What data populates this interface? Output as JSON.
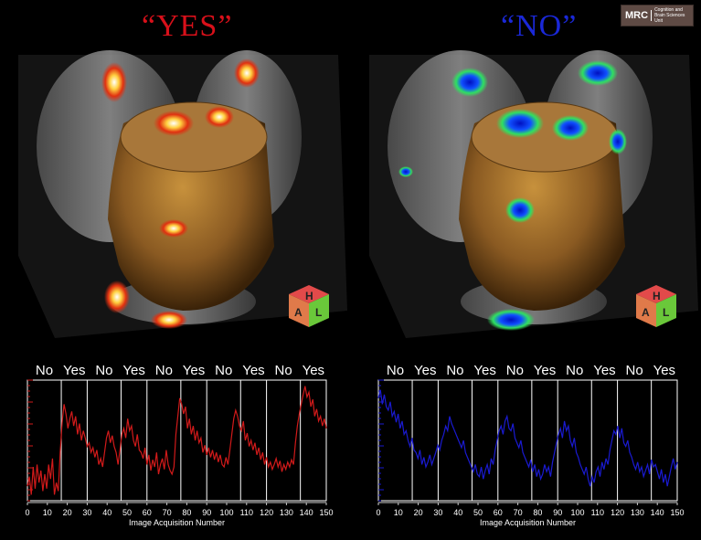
{
  "titles": {
    "left": "“YES”",
    "right": "“NO”"
  },
  "logo": {
    "abbr": "MRC",
    "text_line1": "Cognition and",
    "text_line2": "Brain Sciences Unit"
  },
  "orientation_cube": {
    "labels": [
      "H",
      "A",
      "L"
    ]
  },
  "colors": {
    "yes_title": "#d8101a",
    "no_title": "#1a28d8",
    "yes_series": "#d11a1a",
    "no_series": "#1a1ad1"
  },
  "chart_data": [
    {
      "type": "line",
      "block_labels": [
        "No",
        "Yes",
        "No",
        "Yes",
        "No",
        "Yes",
        "No",
        "Yes",
        "No",
        "Yes"
      ],
      "yes_blocks": [
        [
          17,
          30
        ],
        [
          47,
          60
        ],
        [
          77,
          90
        ],
        [
          107,
          120
        ],
        [
          137,
          150
        ]
      ],
      "xlabel": "Image Acquisition Number",
      "xticks": [
        0,
        10,
        20,
        30,
        40,
        50,
        60,
        70,
        80,
        90,
        100,
        110,
        120,
        130,
        140,
        150
      ],
      "xlim": [
        0,
        150
      ],
      "ylim": [
        0,
        1
      ],
      "series": [
        {
          "color": "#d11a1a",
          "values": [
            0.12,
            0.2,
            0.05,
            0.28,
            0.1,
            0.3,
            0.15,
            0.25,
            0.08,
            0.22,
            0.1,
            0.3,
            0.18,
            0.35,
            0.05,
            0.15,
            0.08,
            0.4,
            0.65,
            0.8,
            0.72,
            0.6,
            0.68,
            0.74,
            0.62,
            0.7,
            0.55,
            0.64,
            0.5,
            0.58,
            0.52,
            0.45,
            0.48,
            0.4,
            0.44,
            0.36,
            0.42,
            0.3,
            0.35,
            0.28,
            0.4,
            0.52,
            0.58,
            0.48,
            0.54,
            0.45,
            0.4,
            0.3,
            0.42,
            0.55,
            0.6,
            0.52,
            0.68,
            0.58,
            0.62,
            0.5,
            0.45,
            0.55,
            0.42,
            0.4,
            0.35,
            0.44,
            0.3,
            0.38,
            0.25,
            0.34,
            0.28,
            0.4,
            0.22,
            0.3,
            0.35,
            0.26,
            0.42,
            0.3,
            0.25,
            0.22,
            0.28,
            0.55,
            0.7,
            0.85,
            0.8,
            0.72,
            0.78,
            0.6,
            0.68,
            0.55,
            0.62,
            0.5,
            0.58,
            0.48,
            0.52,
            0.4,
            0.46,
            0.38,
            0.44,
            0.36,
            0.42,
            0.34,
            0.4,
            0.32,
            0.38,
            0.3,
            0.28,
            0.36,
            0.3,
            0.42,
            0.55,
            0.68,
            0.75,
            0.7,
            0.62,
            0.58,
            0.66,
            0.5,
            0.56,
            0.45,
            0.5,
            0.42,
            0.48,
            0.38,
            0.44,
            0.34,
            0.4,
            0.3,
            0.36,
            0.28,
            0.32,
            0.26,
            0.3,
            0.35,
            0.28,
            0.33,
            0.24,
            0.3,
            0.26,
            0.32,
            0.28,
            0.34,
            0.3,
            0.48,
            0.62,
            0.72,
            0.8,
            0.88,
            0.95,
            0.86,
            0.9,
            0.78,
            0.84,
            0.7,
            0.76,
            0.66,
            0.7,
            0.62,
            0.68,
            0.6
          ]
        }
      ]
    },
    {
      "type": "line",
      "block_labels": [
        "No",
        "Yes",
        "No",
        "Yes",
        "No",
        "Yes",
        "No",
        "Yes",
        "No",
        "Yes"
      ],
      "yes_blocks": [
        [
          17,
          30
        ],
        [
          47,
          60
        ],
        [
          77,
          90
        ],
        [
          107,
          120
        ],
        [
          137,
          150
        ]
      ],
      "xlabel": "Image Acquisition Number",
      "xticks": [
        0,
        10,
        20,
        30,
        40,
        50,
        60,
        70,
        80,
        90,
        100,
        110,
        120,
        130,
        140,
        150
      ],
      "xlim": [
        0,
        150
      ],
      "ylim": [
        0,
        1
      ],
      "series": [
        {
          "color": "#1a1ad1",
          "values": [
            0.85,
            0.92,
            0.8,
            0.88,
            0.78,
            0.75,
            0.82,
            0.7,
            0.74,
            0.65,
            0.72,
            0.6,
            0.66,
            0.55,
            0.58,
            0.5,
            0.45,
            0.52,
            0.42,
            0.4,
            0.35,
            0.42,
            0.3,
            0.36,
            0.28,
            0.32,
            0.38,
            0.3,
            0.35,
            0.4,
            0.46,
            0.42,
            0.5,
            0.55,
            0.62,
            0.58,
            0.7,
            0.64,
            0.6,
            0.56,
            0.52,
            0.48,
            0.44,
            0.5,
            0.4,
            0.36,
            0.32,
            0.28,
            0.24,
            0.3,
            0.22,
            0.2,
            0.28,
            0.18,
            0.25,
            0.3,
            0.22,
            0.35,
            0.3,
            0.42,
            0.5,
            0.58,
            0.62,
            0.55,
            0.66,
            0.7,
            0.6,
            0.58,
            0.64,
            0.52,
            0.48,
            0.44,
            0.5,
            0.4,
            0.36,
            0.32,
            0.28,
            0.34,
            0.24,
            0.3,
            0.2,
            0.26,
            0.18,
            0.22,
            0.3,
            0.24,
            0.28,
            0.2,
            0.32,
            0.4,
            0.48,
            0.55,
            0.6,
            0.52,
            0.66,
            0.58,
            0.62,
            0.5,
            0.45,
            0.52,
            0.4,
            0.36,
            0.3,
            0.26,
            0.22,
            0.28,
            0.18,
            0.12,
            0.2,
            0.15,
            0.24,
            0.28,
            0.2,
            0.32,
            0.26,
            0.35,
            0.3,
            0.42,
            0.5,
            0.58,
            0.55,
            0.62,
            0.52,
            0.6,
            0.48,
            0.45,
            0.5,
            0.4,
            0.36,
            0.3,
            0.26,
            0.32,
            0.24,
            0.28,
            0.2,
            0.25,
            0.3,
            0.22,
            0.34,
            0.28,
            0.3,
            0.24,
            0.18,
            0.26,
            0.15,
            0.22,
            0.12,
            0.2,
            0.28,
            0.35,
            0.26,
            0.32
          ]
        }
      ]
    }
  ]
}
